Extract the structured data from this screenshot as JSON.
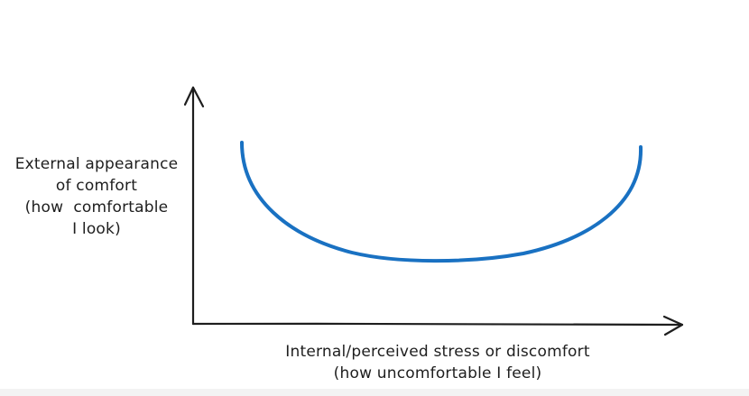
{
  "diagram": {
    "y_axis_label_lines": [
      "External appearance",
      "of comfort",
      "(how  comfortable",
      "I look)"
    ],
    "x_axis_label_lines": [
      "Internal/perceived stress or discomfort",
      "(how uncomfortable I feel)"
    ],
    "curve_color": "#1971c2",
    "axis_color": "#1e1e1e"
  }
}
